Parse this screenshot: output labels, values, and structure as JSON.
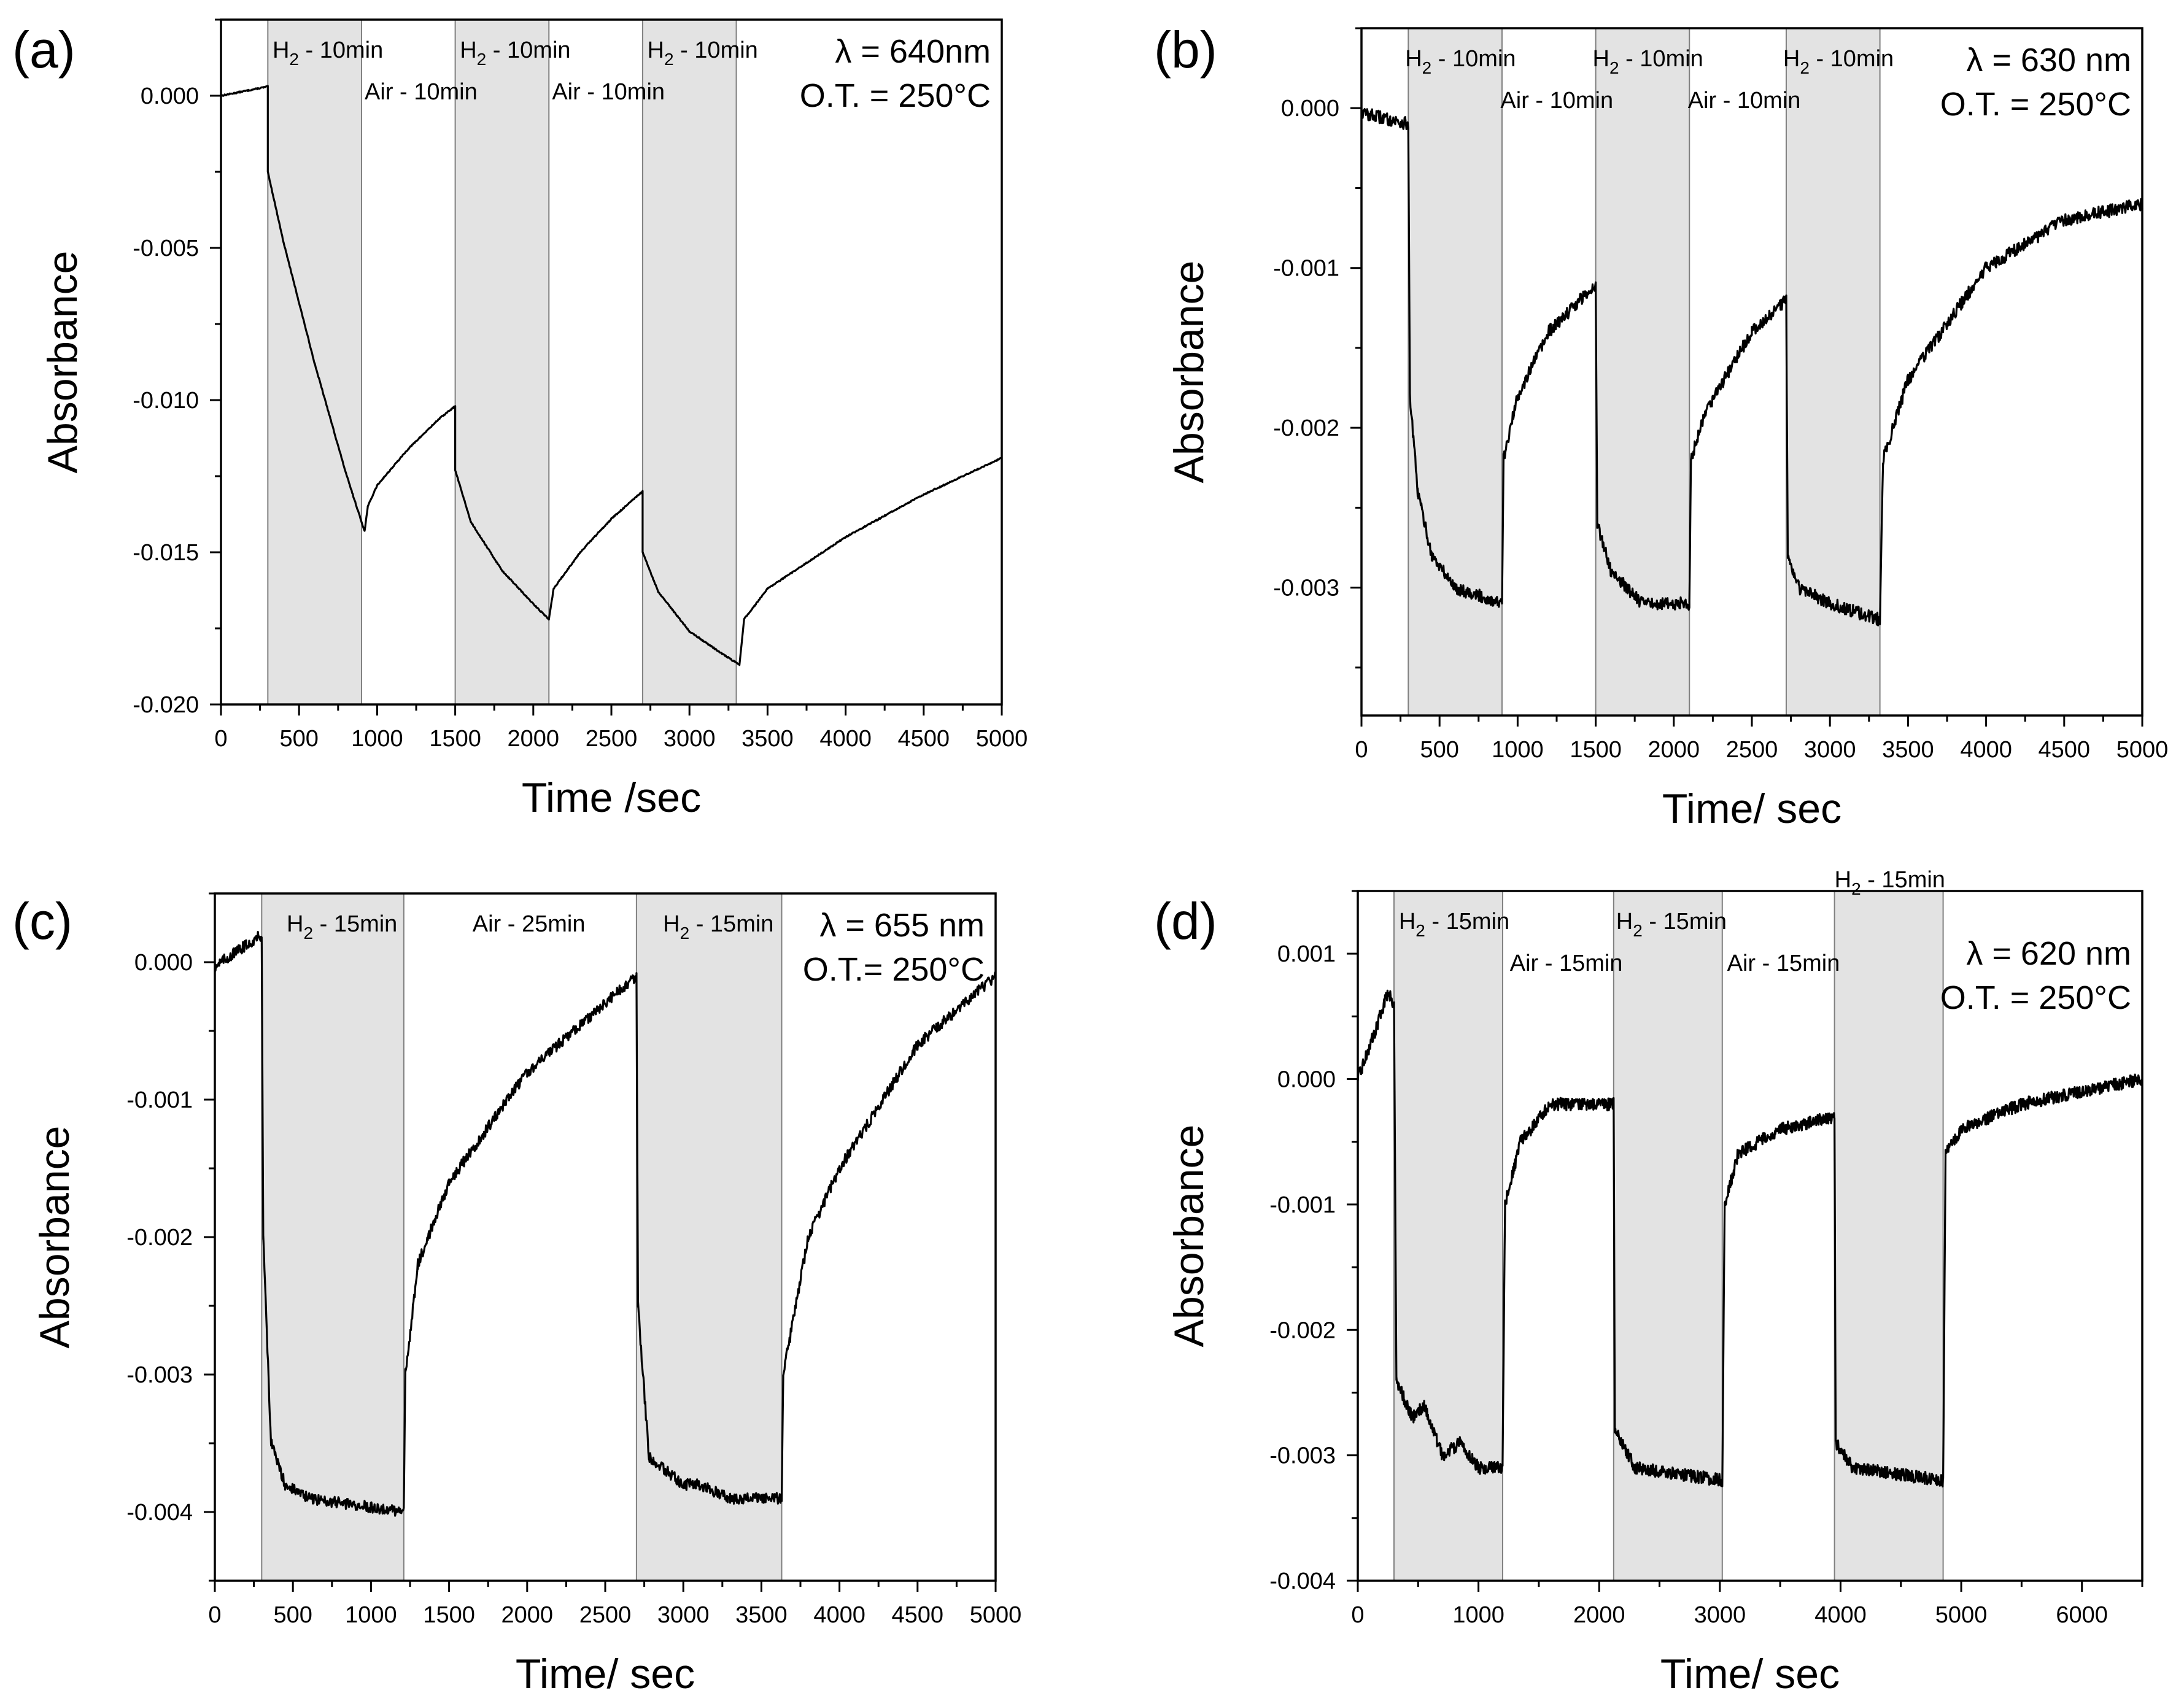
{
  "figure": {
    "background": "#ffffff",
    "shade_color": "#e3e3e3",
    "line_color": "#000000"
  },
  "chart_data": [
    {
      "panel": "(a)",
      "type": "line",
      "xlabel": "Time /sec",
      "ylabel": "Absorbance",
      "xlim": [
        0,
        5000
      ],
      "ylim": [
        -0.02,
        0.0025
      ],
      "xticks": [
        0,
        500,
        1000,
        1500,
        2000,
        2500,
        3000,
        3500,
        4000,
        4500,
        5000
      ],
      "yticks": [
        0.0,
        -0.005,
        -0.01,
        -0.015,
        -0.02
      ],
      "yticklabels": [
        "0.000",
        "-0.005",
        "-0.010",
        "-0.015",
        "-0.020"
      ],
      "info": [
        "λ = 640nm",
        "O.T. = 250°C"
      ],
      "shaded": [
        [
          300,
          900
        ],
        [
          1500,
          2100
        ],
        [
          2700,
          3300
        ]
      ],
      "annotations": [
        {
          "label": "H",
          "sub": "2",
          "rest": " - 10min",
          "x": 330,
          "row": 0
        },
        {
          "label": "Air - 10min",
          "sub": "",
          "rest": "",
          "x": 920,
          "row": 1
        },
        {
          "label": "H",
          "sub": "2",
          "rest": " - 10min",
          "x": 1530,
          "row": 0
        },
        {
          "label": "Air - 10min",
          "sub": "",
          "rest": "",
          "x": 2120,
          "row": 1
        },
        {
          "label": "H",
          "sub": "2",
          "rest": " - 10min",
          "x": 2730,
          "row": 0
        }
      ],
      "noise": 2e-05,
      "series": [
        {
          "name": "absorbance",
          "points": [
            [
              0,
              0.0
            ],
            [
              300,
              0.0003
            ],
            [
              300,
              -0.0025
            ],
            [
              400,
              -0.0048
            ],
            [
              500,
              -0.0068
            ],
            [
              600,
              -0.0088
            ],
            [
              700,
              -0.0106
            ],
            [
              800,
              -0.0124
            ],
            [
              900,
              -0.014
            ],
            [
              920,
              -0.0143
            ],
            [
              940,
              -0.0135
            ],
            [
              1000,
              -0.0128
            ],
            [
              1200,
              -0.0116
            ],
            [
              1400,
              -0.0106
            ],
            [
              1500,
              -0.0102
            ],
            [
              1500,
              -0.0123
            ],
            [
              1600,
              -0.014
            ],
            [
              1800,
              -0.0156
            ],
            [
              2000,
              -0.0167
            ],
            [
              2100,
              -0.0172
            ],
            [
              2130,
              -0.0162
            ],
            [
              2300,
              -0.015
            ],
            [
              2500,
              -0.0139
            ],
            [
              2700,
              -0.013
            ],
            [
              2700,
              -0.015
            ],
            [
              2800,
              -0.0163
            ],
            [
              3000,
              -0.0176
            ],
            [
              3200,
              -0.0183
            ],
            [
              3320,
              -0.0187
            ],
            [
              3350,
              -0.0172
            ],
            [
              3500,
              -0.0162
            ],
            [
              4000,
              -0.0145
            ],
            [
              4500,
              -0.0131
            ],
            [
              5000,
              -0.0119
            ]
          ]
        }
      ]
    },
    {
      "panel": "(b)",
      "type": "line",
      "xlabel": "Time/ sec",
      "ylabel": "Absorbance",
      "xlim": [
        0,
        5000
      ],
      "ylim": [
        -0.0038,
        0.0005
      ],
      "xticks": [
        0,
        500,
        1000,
        1500,
        2000,
        2500,
        3000,
        3500,
        4000,
        4500,
        5000
      ],
      "yticks": [
        0.0,
        -0.001,
        -0.002,
        -0.003
      ],
      "yticklabels": [
        "0.000",
        "-0.001",
        "-0.002",
        "-0.003"
      ],
      "info": [
        "λ = 630 nm",
        "O.T. = 250°C"
      ],
      "shaded": [
        [
          300,
          900
        ],
        [
          1500,
          2100
        ],
        [
          2720,
          3320
        ]
      ],
      "annotations": [
        {
          "label": "H",
          "sub": "2",
          "rest": " - 10min",
          "x": 280,
          "row": 0
        },
        {
          "label": "Air - 10min",
          "sub": "",
          "rest": "",
          "x": 890,
          "row": 1
        },
        {
          "label": "H",
          "sub": "2",
          "rest": " - 10min",
          "x": 1480,
          "row": 0
        },
        {
          "label": "Air - 10min",
          "sub": "",
          "rest": "",
          "x": 2090,
          "row": 1
        },
        {
          "label": "H",
          "sub": "2",
          "rest": " - 10min",
          "x": 2700,
          "row": 0
        }
      ],
      "noise": 4e-05,
      "series": [
        {
          "name": "absorbance",
          "points": [
            [
              0,
              -3e-05
            ],
            [
              300,
              -0.0001
            ],
            [
              310,
              -0.0018
            ],
            [
              360,
              -0.0024
            ],
            [
              450,
              -0.0028
            ],
            [
              600,
              -0.003
            ],
            [
              900,
              -0.0031
            ],
            [
              910,
              -0.0022
            ],
            [
              1000,
              -0.0018
            ],
            [
              1200,
              -0.0014
            ],
            [
              1500,
              -0.0011
            ],
            [
              1510,
              -0.0026
            ],
            [
              1600,
              -0.0029
            ],
            [
              1800,
              -0.0031
            ],
            [
              2100,
              -0.0031
            ],
            [
              2110,
              -0.0022
            ],
            [
              2200,
              -0.0019
            ],
            [
              2500,
              -0.0014
            ],
            [
              2720,
              -0.0012
            ],
            [
              2730,
              -0.0028
            ],
            [
              2800,
              -0.003
            ],
            [
              3000,
              -0.0031
            ],
            [
              3320,
              -0.0032
            ],
            [
              3340,
              -0.0022
            ],
            [
              3500,
              -0.0017
            ],
            [
              4000,
              -0.001
            ],
            [
              4500,
              -0.0007
            ],
            [
              5000,
              -0.0006
            ]
          ]
        }
      ]
    },
    {
      "panel": "(c)",
      "type": "line",
      "xlabel": "Time/ sec",
      "ylabel": "Absorbance",
      "xlim": [
        0,
        5000
      ],
      "ylim": [
        -0.0045,
        0.0005
      ],
      "xticks": [
        0,
        500,
        1000,
        1500,
        2000,
        2500,
        3000,
        3500,
        4000,
        4500,
        5000
      ],
      "yticks": [
        0.0,
        -0.001,
        -0.002,
        -0.003,
        -0.004
      ],
      "yticklabels": [
        "0.000",
        "-0.001",
        "-0.002",
        "-0.003",
        "-0.004"
      ],
      "info": [
        "λ = 655 nm",
        "O.T.= 250°C"
      ],
      "shaded": [
        [
          300,
          1210
        ],
        [
          2700,
          3630
        ]
      ],
      "annotations": [
        {
          "label": "H",
          "sub": "2",
          "rest": " - 15min",
          "x": 460,
          "row": 0
        },
        {
          "label": "Air - 25min",
          "sub": "",
          "rest": "",
          "x": 1650,
          "row": 0
        },
        {
          "label": "H",
          "sub": "2",
          "rest": " - 15min",
          "x": 2870,
          "row": 0
        }
      ],
      "noise": 4e-05,
      "series": [
        {
          "name": "absorbance",
          "points": [
            [
              0,
              -3e-05
            ],
            [
              300,
              0.0002
            ],
            [
              310,
              -0.002
            ],
            [
              360,
              -0.0035
            ],
            [
              450,
              -0.0038
            ],
            [
              600,
              -0.0039
            ],
            [
              1210,
              -0.004
            ],
            [
              1220,
              -0.003
            ],
            [
              1300,
              -0.0022
            ],
            [
              1500,
              -0.0016
            ],
            [
              2000,
              -0.0008
            ],
            [
              2500,
              -0.0003
            ],
            [
              2700,
              -0.0001
            ],
            [
              2710,
              -0.0025
            ],
            [
              2780,
              -0.0036
            ],
            [
              3000,
              -0.0038
            ],
            [
              3100,
              -0.0038
            ],
            [
              3300,
              -0.0039
            ],
            [
              3630,
              -0.0039
            ],
            [
              3640,
              -0.003
            ],
            [
              3800,
              -0.002
            ],
            [
              4000,
              -0.0015
            ],
            [
              4500,
              -0.0006
            ],
            [
              5000,
              -0.0001
            ]
          ]
        }
      ]
    },
    {
      "panel": "(d)",
      "type": "line",
      "xlabel": "Time/ sec",
      "ylabel": "Absorbance",
      "xlim": [
        0,
        6500
      ],
      "ylim": [
        -0.004,
        0.0015
      ],
      "xticks": [
        0,
        1000,
        2000,
        3000,
        4000,
        5000,
        6000
      ],
      "yticks": [
        0.001,
        0.0,
        -0.001,
        -0.002,
        -0.003,
        -0.004
      ],
      "yticklabels": [
        "0.001",
        "0.000",
        "-0.001",
        "-0.002",
        "-0.003",
        "-0.004"
      ],
      "info": [
        "λ = 620 nm",
        "O.T. = 250°C"
      ],
      "shaded": [
        [
          300,
          1200
        ],
        [
          2120,
          3020
        ],
        [
          3950,
          4850
        ]
      ],
      "annotations": [
        {
          "label": "H",
          "sub": "2",
          "rest": " - 15min",
          "x": 340,
          "row": 0
        },
        {
          "label": "Air - 15min",
          "sub": "",
          "rest": "",
          "x": 1260,
          "row": 1
        },
        {
          "label": "H",
          "sub": "2",
          "rest": " - 15min",
          "x": 2140,
          "row": 0
        },
        {
          "label": "Air - 15min",
          "sub": "",
          "rest": "",
          "x": 3060,
          "row": 1
        },
        {
          "label": "H",
          "sub": "2",
          "rest": " - 15min",
          "x": 3950,
          "row": -1
        }
      ],
      "noise": 5e-05,
      "series": [
        {
          "name": "absorbance",
          "points": [
            [
              0,
              0.0
            ],
            [
              150,
              0.0004
            ],
            [
              250,
              0.0007
            ],
            [
              300,
              0.0006
            ],
            [
              320,
              -0.0024
            ],
            [
              450,
              -0.0027
            ],
            [
              550,
              -0.0026
            ],
            [
              700,
              -0.003
            ],
            [
              850,
              -0.0029
            ],
            [
              1000,
              -0.0031
            ],
            [
              1200,
              -0.0031
            ],
            [
              1220,
              -0.001
            ],
            [
              1350,
              -0.0005
            ],
            [
              1600,
              -0.0002
            ],
            [
              2120,
              -0.0002
            ],
            [
              2130,
              -0.0028
            ],
            [
              2300,
              -0.0031
            ],
            [
              3020,
              -0.0032
            ],
            [
              3040,
              -0.001
            ],
            [
              3150,
              -0.0006
            ],
            [
              3500,
              -0.0004
            ],
            [
              3950,
              -0.0003
            ],
            [
              3960,
              -0.0029
            ],
            [
              4100,
              -0.0031
            ],
            [
              4850,
              -0.0032
            ],
            [
              4870,
              -0.0006
            ],
            [
              5000,
              -0.0004
            ],
            [
              5500,
              -0.0002
            ],
            [
              6500,
              0.0
            ]
          ]
        }
      ]
    }
  ]
}
